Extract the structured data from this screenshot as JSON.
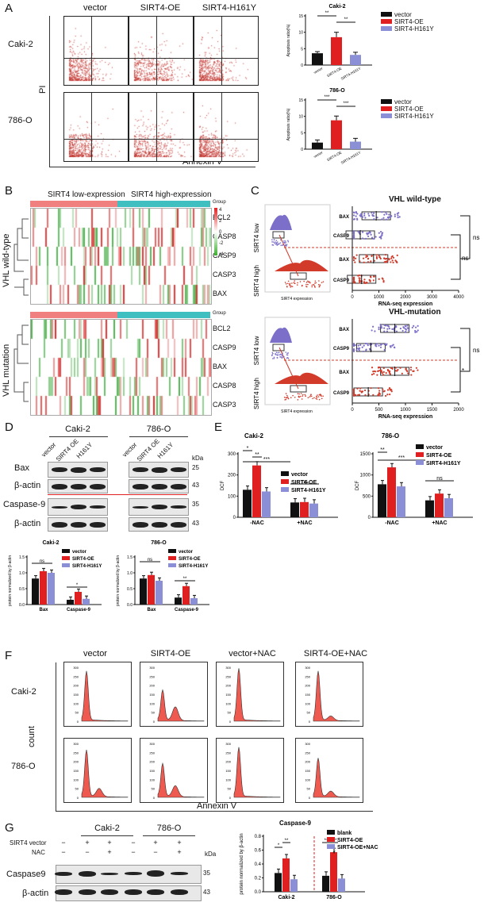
{
  "panels": {
    "A": "A",
    "B": "B",
    "C": "C",
    "D": "D",
    "E": "E",
    "F": "F",
    "G": "G"
  },
  "colors": {
    "black": "#111111",
    "red": "#e02020",
    "purple": "#8b8fd6",
    "salmon": "#f08080",
    "teal": "#3fbfbf"
  },
  "panelA": {
    "col_titles": [
      "vector",
      "SIRT4-OE",
      "SIRT4-H161Y"
    ],
    "row_labels": [
      "Caki-2",
      "786-O"
    ],
    "y_axis": "PI",
    "x_axis": "Annexin V"
  },
  "apop_caki": {
    "title": "Caki-2",
    "ylabel": "Apoptosis ratio(%)",
    "yticks": [
      "0",
      "5",
      "10",
      "15"
    ],
    "cats": [
      "vector",
      "SIRT4-OE",
      "SIRT4-H161Y"
    ],
    "values": [
      3.6,
      8.5,
      3.1
    ],
    "errs": [
      0.5,
      1.5,
      0.8
    ],
    "ymax": 15,
    "sig": [
      "**",
      "**"
    ]
  },
  "apop_786": {
    "title": "786-O",
    "ylabel": "Apoptosis ratio(%)",
    "yticks": [
      "0",
      "5",
      "10",
      "15"
    ],
    "cats": [
      "vector",
      "SIRT4-OE",
      "SIRT4-H161Y"
    ],
    "values": [
      2.0,
      8.8,
      2.3
    ],
    "errs": [
      0.8,
      1.3,
      1.0
    ],
    "ymax": 15,
    "sig": [
      "***",
      "***"
    ]
  },
  "legend3": [
    "vector",
    "SIRT4-OE",
    "SIRT4-H161Y"
  ],
  "panelB": {
    "group_low": "SIRT4 low-expression",
    "group_high": "SIRT4 high-expression",
    "group_label": "Group",
    "wt_label": "VHL wild-type",
    "mut_label": "VHL mutation",
    "genes_wt": [
      "BCL2",
      "CASP8",
      "CASP9",
      "CASP3",
      "BAX"
    ],
    "genes_mut": [
      "BCL2",
      "CASP9",
      "BAX",
      "CASP8",
      "CASP3"
    ],
    "scale": [
      "4",
      "2",
      "0",
      "-2",
      "-4"
    ]
  },
  "panelC": {
    "wt_title": "VHL wild-type",
    "mut_title": "VHL-mutation",
    "low": "SIRT4 low",
    "high": "SIRT4 high",
    "xlabel_left": "SIRT4 expression",
    "xlabel_right": "RNA-seq expression",
    "genes_wt": [
      "BAX",
      "CASP9",
      "BAX",
      "CASP9"
    ],
    "genes_mut": [
      "BAX",
      "CASP9",
      "BAX",
      "CASP9"
    ],
    "xticks_wt": [
      "0",
      "1000",
      "2000",
      "3000",
      "4000"
    ],
    "xticks_mut": [
      "0",
      "500",
      "1000",
      "1500",
      "2000"
    ],
    "sig_wt": [
      "ns",
      "ns"
    ],
    "sig_mut": [
      "ns",
      "*"
    ]
  },
  "panelD": {
    "cell_lines": [
      "Caki-2",
      "786-O"
    ],
    "lanes": [
      "vector",
      "SIRT4 OE",
      "H161Y"
    ],
    "kda": "kDa",
    "rows": [
      "Bax",
      "β-actin",
      "Caspase-9",
      "β-actin"
    ],
    "mw": [
      "25",
      "43",
      "35",
      "43"
    ]
  },
  "bar_d_caki": {
    "title": "Caki-2",
    "ylabel": "protein normalized by β-actin",
    "yticks": [
      "0.0",
      "0.5",
      "1.0",
      "1.5"
    ],
    "cats": [
      "Bax",
      "Caspase-9"
    ],
    "series": [
      [
        0.82,
        0.15
      ],
      [
        1.05,
        0.4
      ],
      [
        1.0,
        0.18
      ]
    ],
    "ymax": 1.5,
    "sig": [
      "ns",
      "*"
    ]
  },
  "bar_d_786": {
    "title": "786-O",
    "ylabel": "protein normalized by β-actin",
    "yticks": [
      "0.0",
      "0.5",
      "1.0",
      "1.5"
    ],
    "cats": [
      "Bax",
      "Caspase-9"
    ],
    "series": [
      [
        0.82,
        0.22
      ],
      [
        0.93,
        0.58
      ],
      [
        0.75,
        0.2
      ]
    ],
    "ymax": 1.5,
    "sig": [
      "ns",
      "**"
    ]
  },
  "bar_e_caki": {
    "title": "Caki-2",
    "ylabel": "DCF",
    "yticks": [
      "0",
      "100",
      "200",
      "300"
    ],
    "cats": [
      "-NAC",
      "+NAC"
    ],
    "series": [
      [
        130,
        70
      ],
      [
        245,
        72
      ],
      [
        122,
        65
      ]
    ],
    "ymax": 300,
    "sig": [
      "*",
      "**",
      "***",
      "ns"
    ]
  },
  "bar_e_786": {
    "title": "786-O",
    "ylabel": "DCF",
    "yticks": [
      "0",
      "500",
      "1000",
      "1500"
    ],
    "cats": [
      "-NAC",
      "+NAC"
    ],
    "series": [
      [
        780,
        400
      ],
      [
        1180,
        560
      ],
      [
        730,
        450
      ]
    ],
    "ymax": 1500,
    "sig": [
      "**",
      "***",
      "ns"
    ]
  },
  "panelF": {
    "col_titles": [
      "vector",
      "SIRT4-OE",
      "vector+NAC",
      "SIRT4-OE+NAC"
    ],
    "row_labels": [
      "Caki-2",
      "786-O"
    ],
    "y_axis": "count",
    "x_axis": "Annexin V",
    "yticks": [
      "300",
      "250",
      "200",
      "150",
      "100",
      "50",
      "0"
    ]
  },
  "panelG": {
    "cell_lines": [
      "Caki-2",
      "786-O"
    ],
    "row_sirt4": "SIRT4 vector",
    "row_nac": "NAC",
    "sirt4_signs": [
      "−",
      "+",
      "+",
      "−",
      "+",
      "+"
    ],
    "nac_signs": [
      "−",
      "−",
      "+",
      "−",
      "−",
      "+"
    ],
    "kda": "kDa",
    "rows": [
      "Caspase9",
      "β-actin"
    ],
    "mw": [
      "35",
      "43"
    ]
  },
  "bar_g": {
    "title": "Caspase-9",
    "ylabel": "protein normalized by β-actin",
    "yticks": [
      "0.0",
      "0.2",
      "0.4",
      "0.6",
      "0.8"
    ],
    "cats": [
      "Caki-2",
      "786-O"
    ],
    "series": [
      [
        0.27,
        0.23
      ],
      [
        0.48,
        0.57
      ],
      [
        0.18,
        0.19
      ]
    ],
    "ymax": 0.8,
    "legend": [
      "blank",
      "SIRT4-OE",
      "SIRT4-OE+NAC"
    ],
    "sig": [
      "*",
      "**",
      "**",
      "***",
      "#"
    ]
  }
}
